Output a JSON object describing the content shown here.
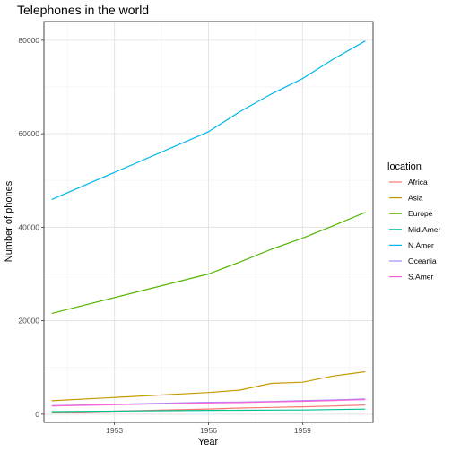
{
  "chart_data": {
    "type": "line",
    "title": "Telephones in the world",
    "xlabel": "Year",
    "ylabel": "Number of phones",
    "x": [
      1951,
      1956,
      1957,
      1958,
      1959,
      1960,
      1961
    ],
    "xlim": [
      1950.75,
      1961.25
    ],
    "ylim": [
      -1750,
      84000
    ],
    "x_ticks": [
      1953,
      1956,
      1959
    ],
    "y_ticks": [
      0,
      20000,
      40000,
      60000,
      80000
    ],
    "x_tick_labels": [
      "1953",
      "1956",
      "1959"
    ],
    "y_tick_labels": [
      "0",
      "20000",
      "40000",
      "60000",
      "80000"
    ],
    "grid": true,
    "legend": {
      "title": "location",
      "position": "right"
    },
    "series": [
      {
        "name": "Africa",
        "color": "#F8766D",
        "values": [
          335,
          1106,
          1318,
          1451,
          1583,
          1768,
          1974
        ]
      },
      {
        "name": "Asia",
        "color": "#C49A00",
        "values": [
          2876,
          4642,
          5156,
          6602,
          6840,
          8191,
          9083
        ]
      },
      {
        "name": "Europe",
        "color": "#53B400",
        "values": [
          21574,
          29995,
          32543,
          35271,
          37649,
          40368,
          43173
        ]
      },
      {
        "name": "Mid.Amer",
        "color": "#00C094",
        "values": [
          555,
          830,
          849,
          880,
          897,
          995,
          1080
        ]
      },
      {
        "name": "N.Amer",
        "color": "#00B6EB",
        "values": [
          45939,
          60423,
          64721,
          68484,
          71799,
          76036,
          79831
        ]
      },
      {
        "name": "Oceania",
        "color": "#A58AFF",
        "values": [
          1815,
          2544,
          2593,
          2711,
          2909,
          3047,
          3268
        ]
      },
      {
        "name": "S.Amer",
        "color": "#FB61D7",
        "values": [
          1774,
          2417,
          2480,
          2648,
          2761,
          2929,
          3140
        ]
      }
    ]
  }
}
